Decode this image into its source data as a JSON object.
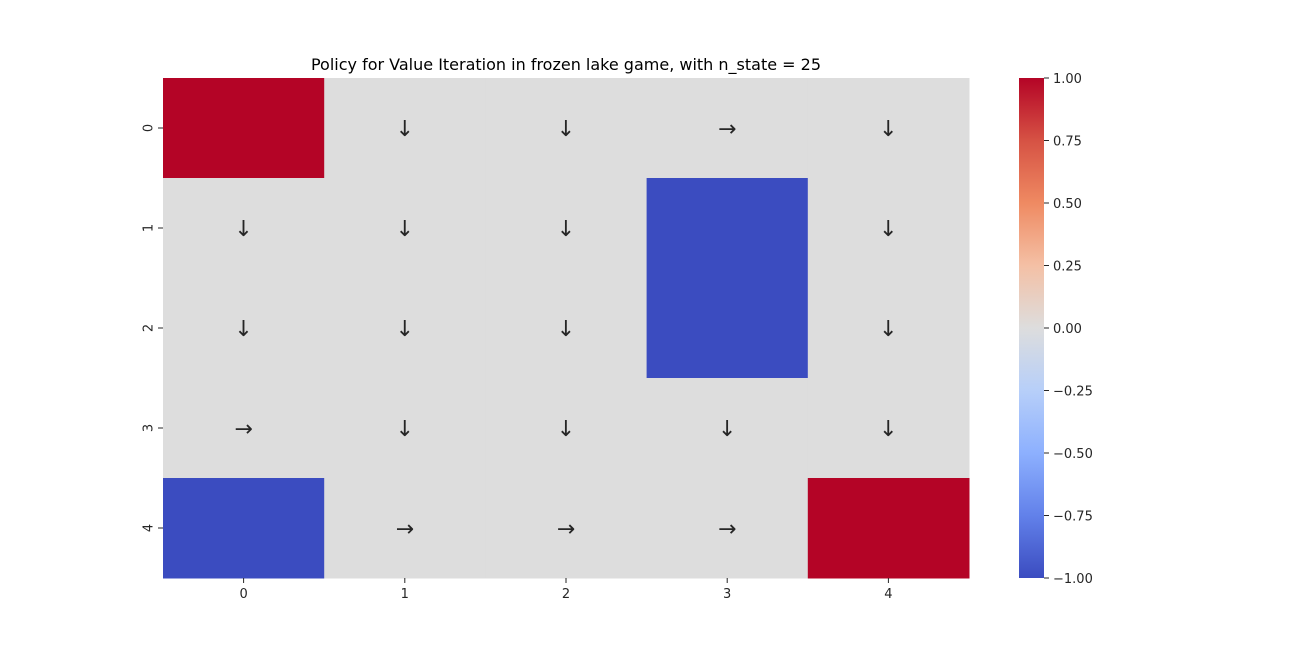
{
  "chart_data": {
    "type": "heatmap",
    "title": "Policy for Value Iteration in frozen lake game, with n_state = 25",
    "xlabel": "",
    "ylabel": "",
    "x_ticks": [
      "0",
      "1",
      "2",
      "3",
      "4"
    ],
    "y_ticks": [
      "0",
      "1",
      "2",
      "3",
      "4"
    ],
    "values": [
      [
        1,
        0,
        0,
        0,
        0
      ],
      [
        0,
        0,
        0,
        -1,
        0
      ],
      [
        0,
        0,
        0,
        -1,
        0
      ],
      [
        0,
        0,
        0,
        0,
        0
      ],
      [
        -1,
        0,
        0,
        0,
        1
      ]
    ],
    "annotations": [
      [
        "",
        "↓",
        "↓",
        "→",
        "↓"
      ],
      [
        "↓",
        "↓",
        "↓",
        "",
        "↓"
      ],
      [
        "↓",
        "↓",
        "↓",
        "",
        "↓"
      ],
      [
        "→",
        "↓",
        "↓",
        "↓",
        "↓"
      ],
      [
        "",
        "→",
        "→",
        "→",
        ""
      ]
    ],
    "colormap": "coolwarm",
    "vmin": -1,
    "vmax": 1,
    "colorbar_ticks": [
      "1.00",
      "0.75",
      "0.50",
      "0.25",
      "0.00",
      "−0.25",
      "−0.50",
      "−0.75",
      "−1.00"
    ],
    "colors": {
      "positive": "#b40426",
      "neutral": "#dddddd",
      "negative": "#3b4cc0"
    }
  }
}
